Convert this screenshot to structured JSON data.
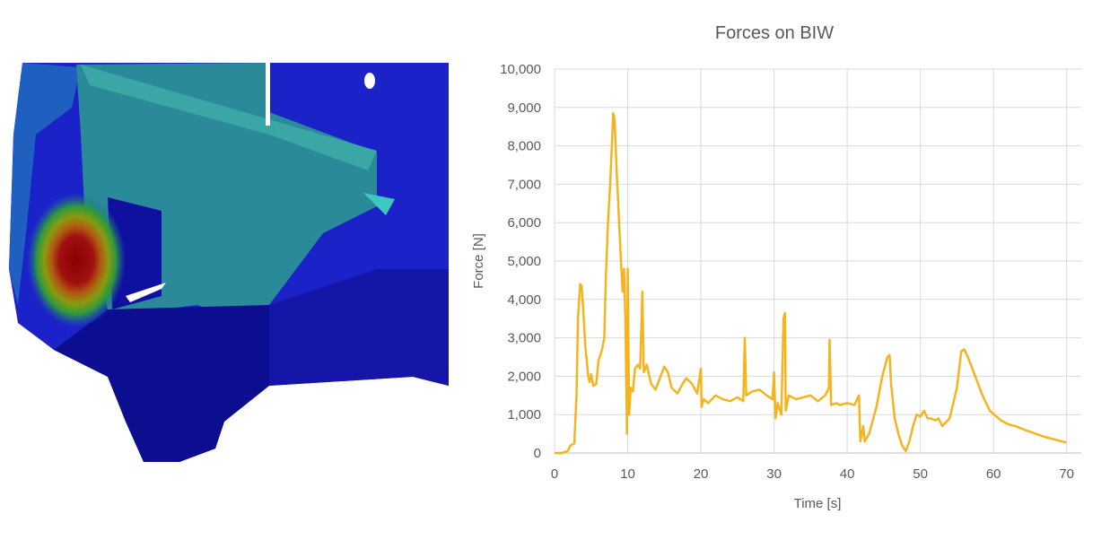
{
  "chart_data": {
    "type": "line",
    "title": "Forces on BIW",
    "x_label": "Time [s]",
    "y_label": "Force [N]",
    "color": "#f5b41e",
    "grid": true,
    "xlim": [
      0,
      72
    ],
    "ylim": [
      0,
      10000
    ],
    "xticks": [
      0,
      10,
      20,
      30,
      40,
      50,
      60,
      70
    ],
    "yticks": [
      0,
      {
        "value": 1000,
        "label": "1,000"
      },
      {
        "value": 2000,
        "label": "2,000"
      },
      {
        "value": 3000,
        "label": "3,000"
      },
      {
        "value": 4000,
        "label": "4,000"
      },
      {
        "value": 5000,
        "label": "5,000"
      },
      {
        "value": 6000,
        "label": "6,000"
      },
      {
        "value": 7000,
        "label": "7,000"
      },
      {
        "value": 8000,
        "label": "8,000"
      },
      {
        "value": 9000,
        "label": "9,000"
      },
      {
        "value": 10000,
        "label": "10,000"
      }
    ],
    "x": [
      0,
      1,
      1.8,
      2.2,
      2.7,
      3,
      3.2,
      3.5,
      3.7,
      3.9,
      4.2,
      4.6,
      4.8,
      5.0,
      5.3,
      5.7,
      6.0,
      6.5,
      6.8,
      7.0,
      7.3,
      7.6,
      7.9,
      8.0,
      8.2,
      8.5,
      9.0,
      9.3,
      9.5,
      9.7,
      9.9,
      10.0,
      10.2,
      10.4,
      10.7,
      11,
      11.4,
      11.7,
      12,
      12.2,
      12.6,
      13.2,
      13.8,
      14.5,
      15,
      15.5,
      16,
      16.8,
      17.5,
      18,
      18.8,
      19.5,
      20,
      20.1,
      20.4,
      21,
      22,
      23,
      24,
      25,
      25.8,
      26,
      26.2,
      27,
      28,
      29,
      29.8,
      30,
      30.2,
      30.5,
      31,
      31.3,
      31.5,
      31.6,
      32,
      33,
      34,
      35,
      36,
      37,
      37.5,
      37.6,
      37.8,
      38.5,
      39,
      40,
      41,
      41.6,
      41.8,
      42.2,
      42.4,
      43,
      44,
      44.8,
      45.5,
      45.8,
      46,
      46.5,
      47,
      47.5,
      48,
      48.5,
      49,
      49.5,
      50,
      50.5,
      51,
      51.5,
      52,
      52.5,
      53,
      54,
      55,
      55.6,
      56,
      56.5,
      57.5,
      58.5,
      59.5,
      61,
      62,
      63,
      65,
      67,
      70
    ],
    "values": [
      0,
      0,
      50,
      200,
      250,
      1500,
      3500,
      4400,
      4350,
      3800,
      2800,
      2000,
      1850,
      2050,
      1750,
      1800,
      2400,
      2700,
      3000,
      4500,
      6000,
      7000,
      8300,
      8850,
      8700,
      7300,
      5300,
      4200,
      4800,
      3300,
      500,
      4800,
      1000,
      1700,
      1600,
      2200,
      2300,
      2200,
      4200,
      2100,
      2300,
      1800,
      1650,
      2000,
      2250,
      2100,
      1700,
      1550,
      1800,
      1950,
      1800,
      1550,
      2200,
      1200,
      1400,
      1300,
      1500,
      1400,
      1350,
      1450,
      1350,
      3000,
      1500,
      1600,
      1650,
      1500,
      1400,
      2100,
      900,
      1300,
      1000,
      3500,
      3650,
      1100,
      1500,
      1400,
      1450,
      1500,
      1350,
      1500,
      1700,
      2950,
      1250,
      1300,
      1250,
      1300,
      1250,
      1500,
      300,
      700,
      300,
      500,
      1200,
      2000,
      2500,
      2550,
      1800,
      900,
      500,
      200,
      50,
      300,
      700,
      1000,
      950,
      1100,
      900,
      900,
      850,
      900,
      700,
      900,
      1700,
      2650,
      2700,
      2500,
      2000,
      1500,
      1100,
      850,
      750,
      700,
      550,
      420,
      270
    ]
  }
}
